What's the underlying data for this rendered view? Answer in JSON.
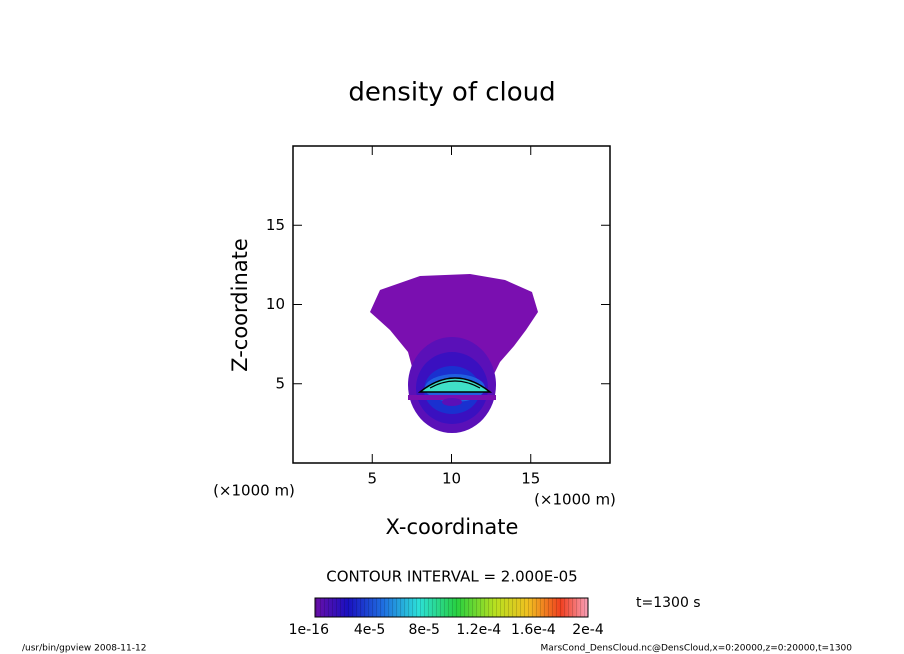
{
  "chart_data": {
    "type": "contour",
    "title": "density of cloud",
    "xlabel": "X-coordinate",
    "ylabel": "Z-coordinate",
    "xunit": "(×1000 m)",
    "yunit": "(×1000 m)",
    "xlim": [
      0,
      20
    ],
    "ylim": [
      0,
      20
    ],
    "xticks": [
      5,
      10,
      15
    ],
    "yticks": [
      5,
      10,
      15
    ],
    "contour_interval": "CONTOUR INTERVAL = 2.000E-05",
    "time_label": "t=1300 s",
    "colorbar": {
      "labels": [
        "1e-16",
        "4e-5",
        "8e-5",
        "1.2e-4",
        "1.6e-4",
        "2e-4"
      ]
    },
    "footer_left": "/usr/bin/gpview  2008-11-12",
    "footer_right": "MarsCond_DensCloud.nc@DensCloud,x=0:20000,z=0:20000,t=1300"
  }
}
